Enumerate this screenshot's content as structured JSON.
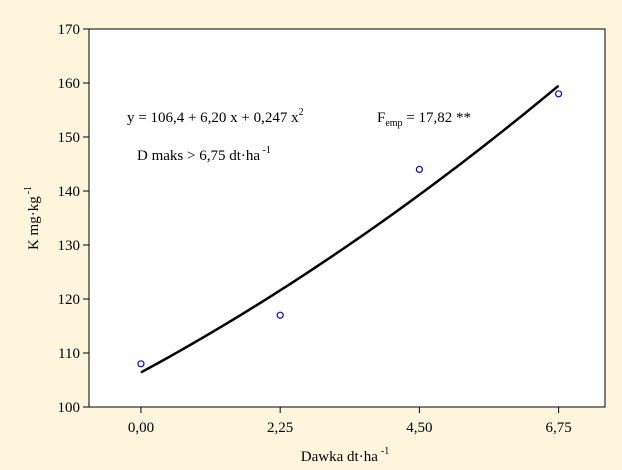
{
  "chart_data": {
    "type": "scatter",
    "background": "#fdf6dd",
    "plot_background": "#ffffff",
    "xlabel": "Dawka dt·ha",
    "xlabel_sup": "-1",
    "ylabel": "K mg·kg",
    "ylabel_sup": "-1",
    "xlim": [
      -0.84,
      7.5
    ],
    "ylim": [
      100,
      170
    ],
    "x_ticks": [
      0,
      2.25,
      4.5,
      6.75
    ],
    "x_tick_labels": [
      "0,00",
      "2,25",
      "4,50",
      "6,75"
    ],
    "y_ticks": [
      100,
      110,
      120,
      130,
      140,
      150,
      160,
      170
    ],
    "y_tick_labels": [
      "100",
      "110",
      "120",
      "130",
      "140",
      "150",
      "160",
      "170"
    ],
    "grid": false,
    "series": [
      {
        "kind": "points",
        "color": "#0000ff",
        "x": [
          0,
          2.25,
          4.5,
          6.75
        ],
        "y": [
          108,
          117,
          144,
          158
        ]
      },
      {
        "kind": "fitted-curve",
        "color": "#000000",
        "fit": {
          "a": 106.4,
          "b": 6.2,
          "c": 0.247
        },
        "x_range": [
          0,
          6.75
        ]
      }
    ],
    "annotations": {
      "equation": {
        "prefix": "y = 106,4 + 6,20 x + 0,247 x",
        "sup": "2"
      },
      "femp": {
        "main": "F",
        "sub": "emp",
        "rest": " = 17,82 **"
      },
      "dmaks": {
        "main": "D maks > 6,75 dt·ha",
        "sup": " -1"
      }
    }
  }
}
